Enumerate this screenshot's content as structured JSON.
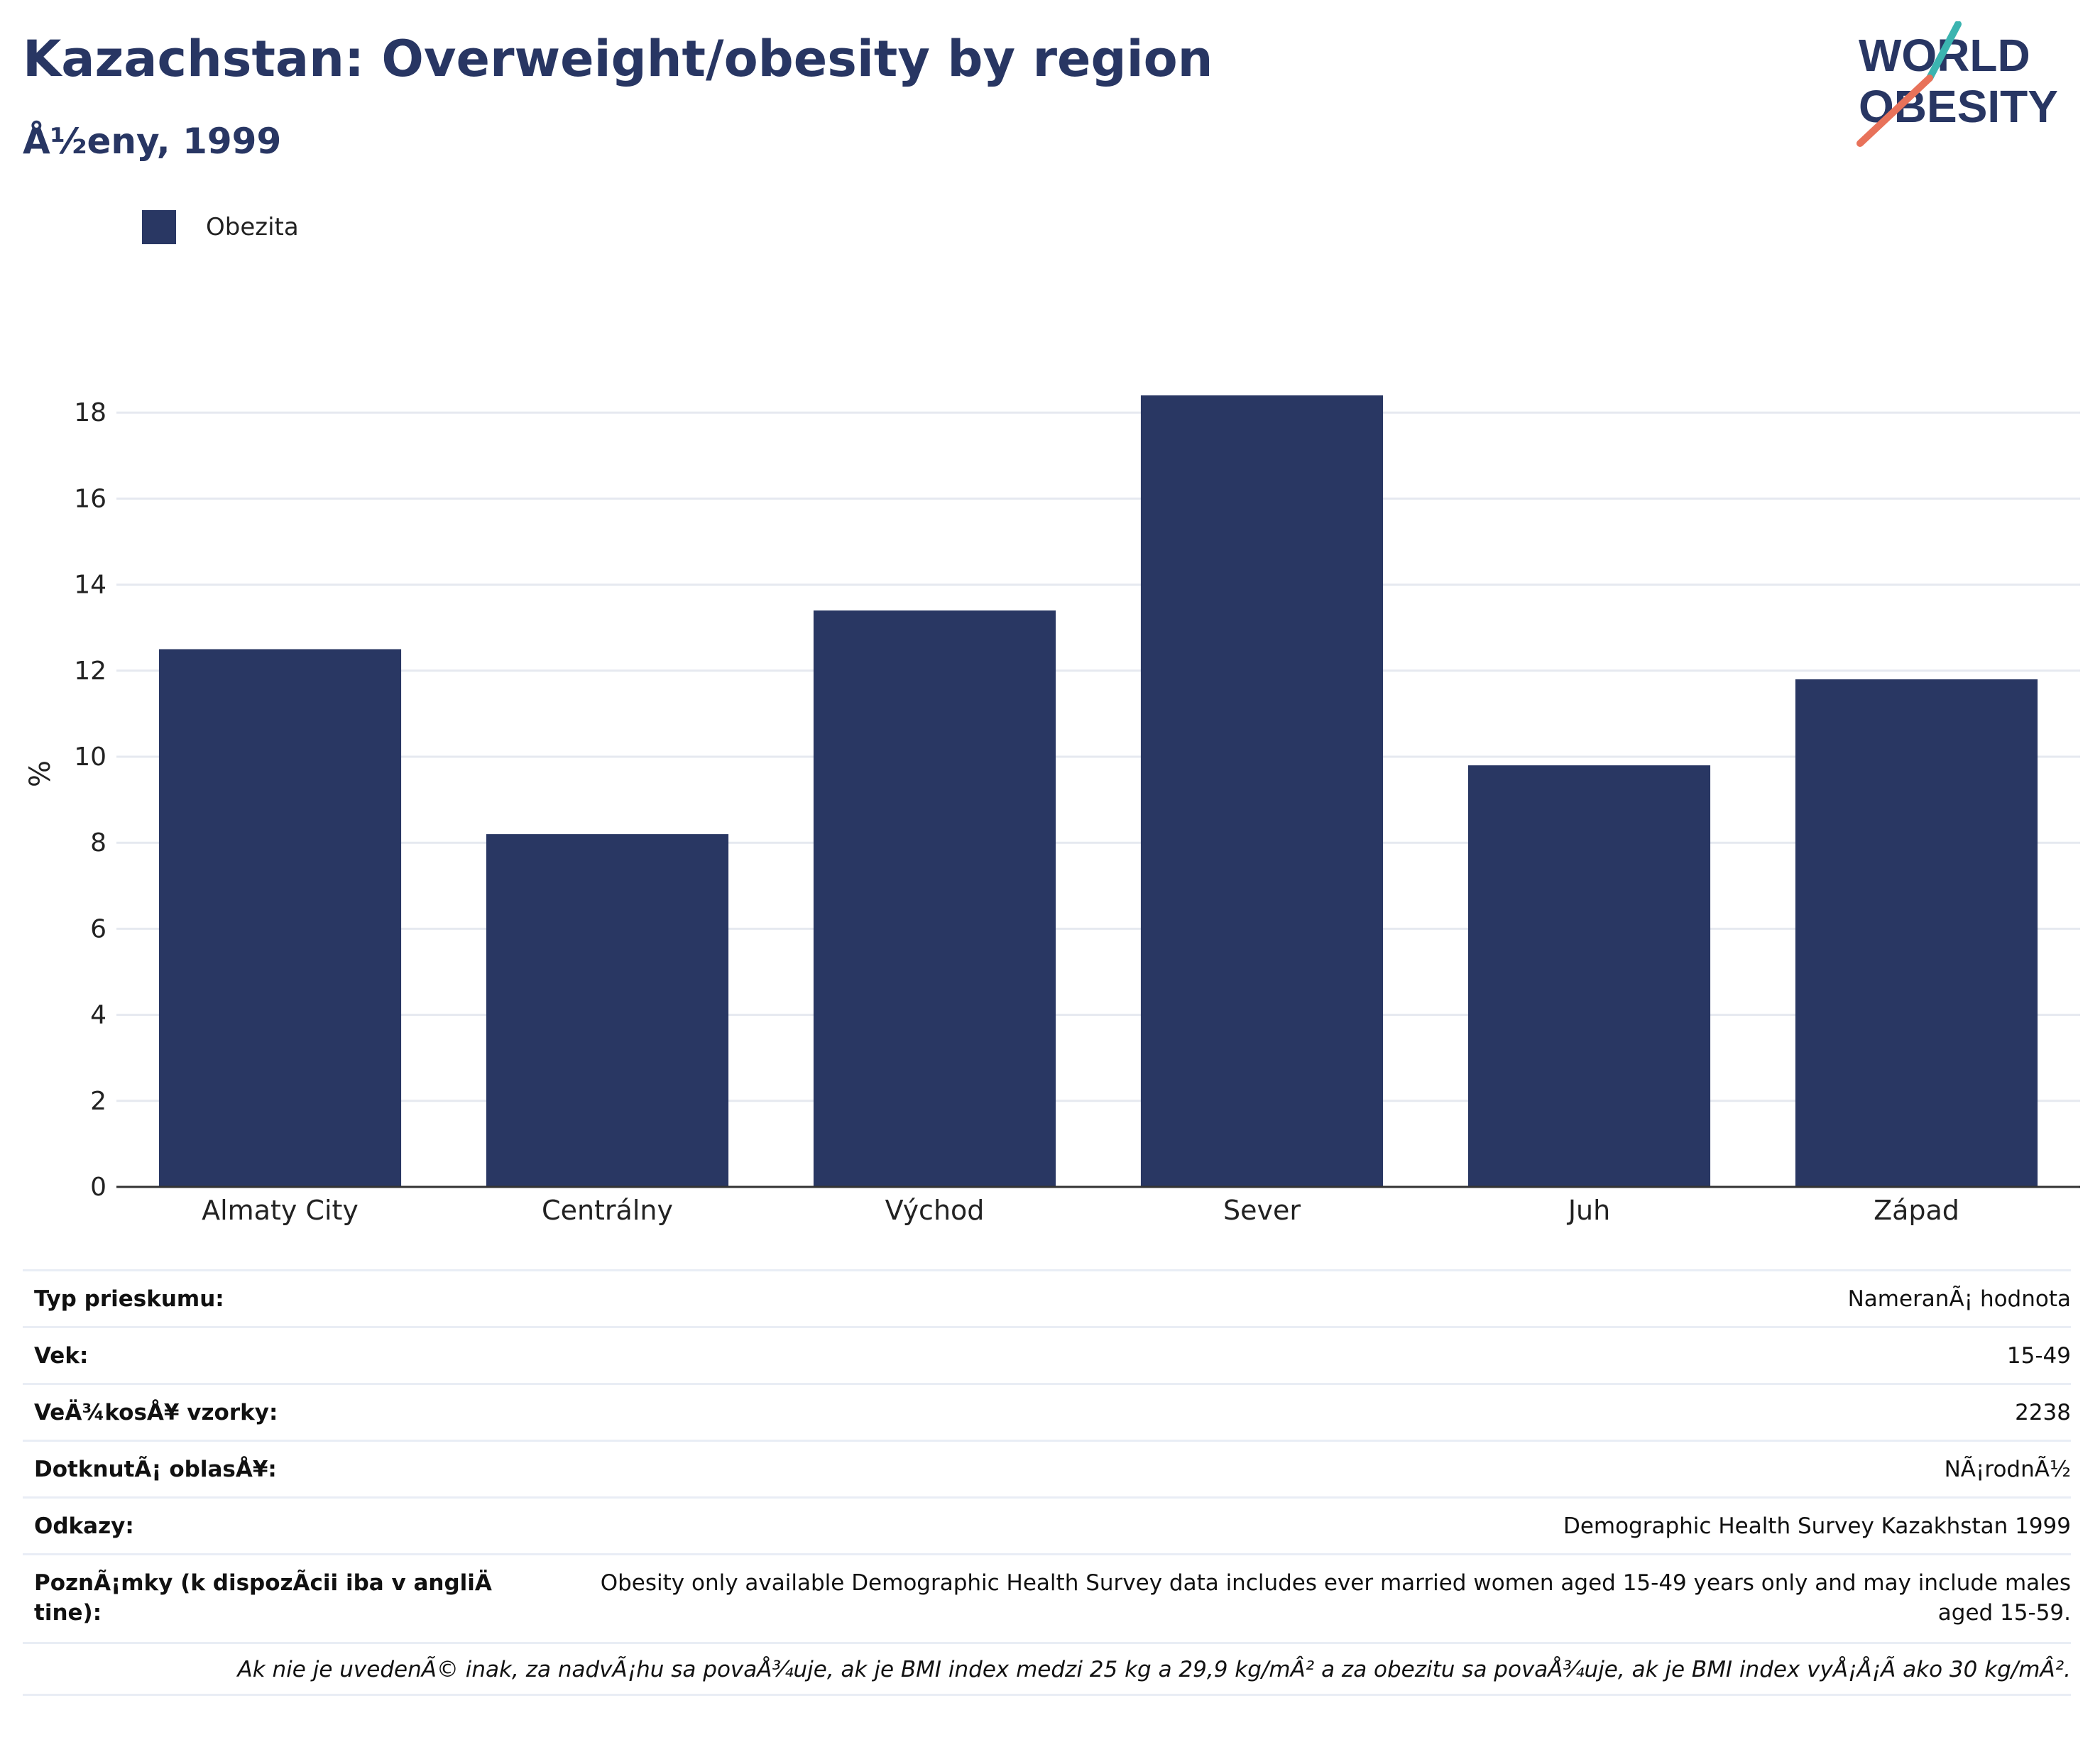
{
  "header": {
    "title": "Kazachstan: Overweight/obesity by region",
    "subtitle": "Å½eny, 1999"
  },
  "logo": {
    "line1": "WORLD",
    "line2": "OBESITY",
    "accent_teal": "#3bb4b0",
    "accent_coral": "#e8725a",
    "text_color": "#283663"
  },
  "colors": {
    "bar": "#293763",
    "title": "#283663",
    "grid": "#e6e9f0",
    "axis": "#333333"
  },
  "chart_data": {
    "type": "bar",
    "categories": [
      "Almaty City",
      "Centrálny",
      "Východ",
      "Sever",
      "Juh",
      "Západ"
    ],
    "series": [
      {
        "name": "Obezita",
        "values": [
          12.5,
          8.2,
          13.4,
          18.4,
          9.8,
          11.8
        ]
      }
    ],
    "ylabel": "%",
    "xlabel": "",
    "ylim": [
      0,
      19
    ],
    "yticks": [
      0,
      2,
      4,
      6,
      8,
      10,
      12,
      14,
      16,
      18
    ],
    "grid": true,
    "legend": "top-left"
  },
  "info": {
    "rows": [
      {
        "key": "Typ prieskumu:",
        "value": "NameranÃ¡ hodnota"
      },
      {
        "key": "Vek:",
        "value": "15-49"
      },
      {
        "key": "VeÄ¾kosÅ¥ vzorky:",
        "value": "2238"
      },
      {
        "key": "DotknutÃ¡ oblasÅ¥:",
        "value": "NÃ¡rodnÃ½"
      },
      {
        "key": "Odkazy:",
        "value": "Demographic Health Survey Kazakhstan 1999"
      }
    ],
    "notes_key": "PoznÃ¡mky (k dispozÃcii iba v angliÄ tine):",
    "notes_value": "Obesity only available Demographic Health Survey data includes ever married women aged 15-49 years only and may include males aged 15-59.",
    "footnote": "Ak nie je uvedenÃ© inak, za nadvÃ¡hu sa povaÅ¾uje, ak je BMI index medzi 25 kg a 29,9 kg/mÂ² a za obezitu sa povaÅ¾uje, ak je BMI index vyÅ¡Å¡Ã ako 30 kg/mÂ²."
  }
}
